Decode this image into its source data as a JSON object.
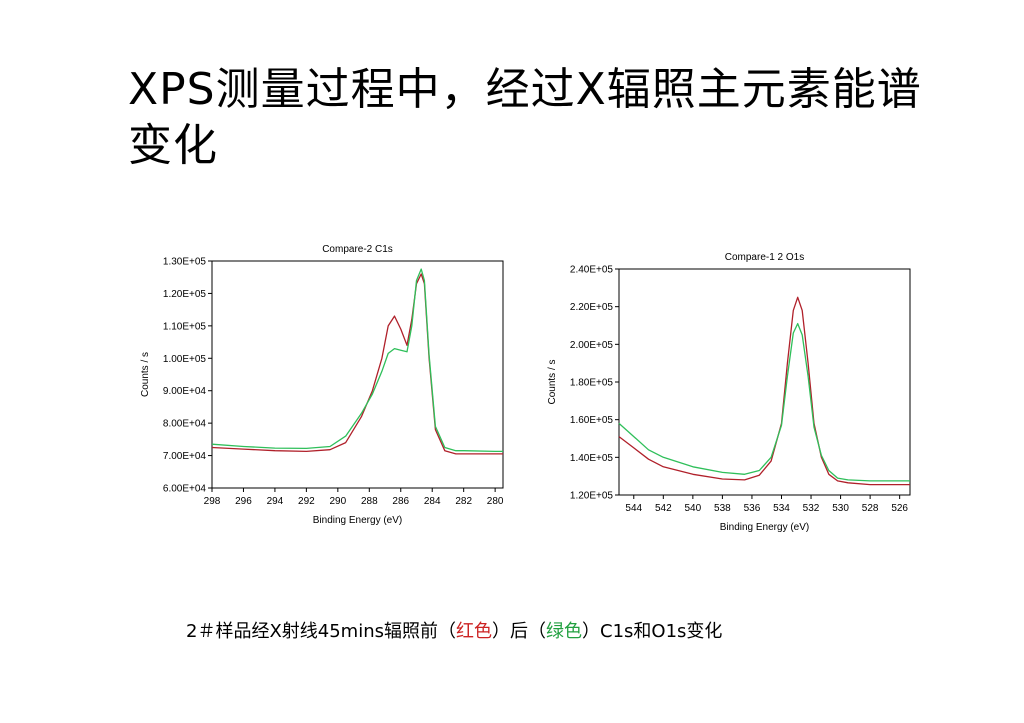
{
  "slide": {
    "title": "XPS测量过程中，经过X辐照主元素能谱变化",
    "caption": {
      "part1": "2＃样品经X射线45mins辐照前（",
      "red_text": "红色",
      "part2": "）后（",
      "green_text": "绿色",
      "part3": "）C1s和O1s变化"
    }
  },
  "colors": {
    "before": "#b0202a",
    "after": "#2fbf5a",
    "caption_red": "#cc2222",
    "caption_green": "#22a040"
  },
  "chart_data": [
    {
      "type": "line",
      "title": "Compare-2 C1s",
      "xlabel": "Binding Energy (eV)",
      "ylabel": "Counts / s",
      "xlim": [
        298,
        279.5
      ],
      "ylim": [
        60000,
        130000
      ],
      "xticks": [
        "298",
        "296",
        "294",
        "292",
        "290",
        "288",
        "286",
        "284",
        "282",
        "280"
      ],
      "yticks": [
        "6.00E+04",
        "7.00E+04",
        "8.00E+04",
        "9.00E+04",
        "1.00E+05",
        "1.10E+05",
        "1.20E+05",
        "1.30E+05"
      ],
      "series": [
        {
          "color": "#b0202a",
          "x": [
            298,
            296,
            294,
            292,
            290.5,
            289.5,
            288.5,
            287.8,
            287.2,
            286.8,
            286.4,
            286.0,
            285.6,
            285.3,
            285.0,
            284.7,
            284.5,
            284.2,
            283.8,
            283.2,
            282.5,
            282,
            280,
            279.5
          ],
          "y": [
            72500,
            72000,
            71500,
            71300,
            71800,
            74000,
            82000,
            90000,
            100000,
            110000,
            113000,
            109000,
            104000,
            112000,
            123000,
            126000,
            123000,
            100000,
            78000,
            71500,
            70500,
            70500,
            70500,
            70500
          ]
        },
        {
          "color": "#2fbf5a",
          "x": [
            298,
            296,
            294,
            292,
            290.5,
            289.5,
            288.5,
            287.8,
            287.2,
            286.8,
            286.4,
            286.0,
            285.6,
            285.3,
            285.0,
            284.7,
            284.5,
            284.2,
            283.8,
            283.2,
            282.5,
            282,
            280,
            279.5
          ],
          "y": [
            73500,
            72800,
            72300,
            72200,
            72800,
            76000,
            83000,
            89000,
            96000,
            101500,
            103000,
            102500,
            102000,
            110000,
            124000,
            127500,
            124000,
            101000,
            79000,
            72500,
            71500,
            71500,
            71300,
            71300
          ]
        }
      ]
    },
    {
      "type": "line",
      "title": "Compare-1 2 O1s",
      "xlabel": "Binding Energy (eV)",
      "ylabel": "Counts / s",
      "xlim": [
        545,
        525.3
      ],
      "ylim": [
        120000,
        240000
      ],
      "xticks": [
        "544",
        "542",
        "540",
        "538",
        "536",
        "534",
        "532",
        "530",
        "528",
        "526"
      ],
      "yticks": [
        "1.20E+05",
        "1.40E+05",
        "1.60E+05",
        "1.80E+05",
        "2.00E+05",
        "2.20E+05",
        "2.40E+05"
      ],
      "series": [
        {
          "color": "#b0202a",
          "x": [
            545,
            544,
            543,
            542,
            540,
            538,
            536.5,
            535.5,
            534.7,
            534,
            533.6,
            533.2,
            532.9,
            532.6,
            532.2,
            531.8,
            531.3,
            530.8,
            530.2,
            529.5,
            528,
            526,
            525.3
          ],
          "y": [
            151000,
            145000,
            139000,
            135000,
            131000,
            128500,
            128000,
            130500,
            138000,
            158000,
            190000,
            218000,
            225000,
            218000,
            190000,
            158000,
            140000,
            131000,
            127500,
            126500,
            125500,
            125500,
            125500
          ]
        },
        {
          "color": "#2fbf5a",
          "x": [
            545,
            544,
            543,
            542,
            540,
            538,
            536.5,
            535.5,
            534.7,
            534,
            533.6,
            533.2,
            532.9,
            532.6,
            532.2,
            531.8,
            531.3,
            530.8,
            530.2,
            529.5,
            528,
            526,
            525.3
          ],
          "y": [
            158000,
            151000,
            144000,
            140000,
            135000,
            132000,
            131000,
            133000,
            140000,
            157000,
            183000,
            206000,
            211000,
            205000,
            183000,
            156000,
            141000,
            133000,
            129000,
            128000,
            127500,
            127500,
            127500
          ]
        }
      ]
    }
  ]
}
